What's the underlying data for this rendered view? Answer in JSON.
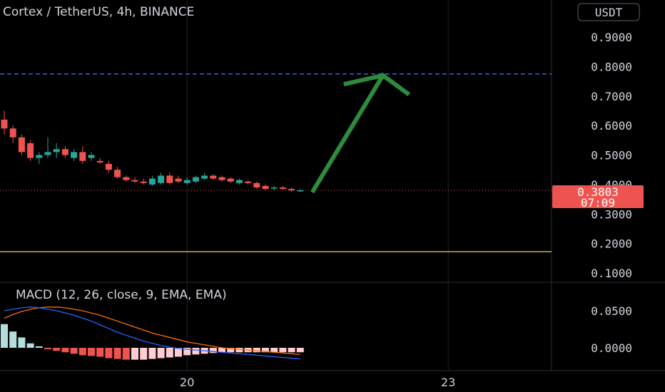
{
  "header": {
    "title": "Cortex / TetherUS, 4h, BINANCE",
    "currency": "USDT"
  },
  "price_badge": {
    "price": "0.3803",
    "countdown": "07:09"
  },
  "macd_label": "MACD (12, 26, close, 9, EMA, EMA)",
  "colors": {
    "background": "#000000",
    "up": "#26a69a",
    "down": "#ef5350",
    "arrow": "#2e8b3d",
    "dashed_line": "#3d5fd1",
    "horizontal_line": "#d4c043",
    "macd_line": "#2962ff",
    "signal_line": "#ff6d00",
    "hist_up_strong": "#b2dfdb",
    "hist_down_strong": "#ef5350",
    "hist_down_weak": "#ffcdd2"
  },
  "chart_data": [
    {
      "type": "candlestick",
      "title": "Cortex / TetherUS, 4h, BINANCE",
      "ylim": [
        0.05,
        1.0
      ],
      "y_ticks": [
        "0.9000",
        "0.8000",
        "0.7000",
        "0.6000",
        "0.5000",
        "0.4000",
        "0.3000",
        "0.2000",
        "0.1000"
      ],
      "y_tick_values": [
        0.9,
        0.8,
        0.7,
        0.6,
        0.5,
        0.4,
        0.3,
        0.2,
        0.1
      ],
      "x_ticks": [
        {
          "label": "20",
          "index": 21
        },
        {
          "label": "23",
          "index": 51
        }
      ],
      "x_count": 55,
      "candles": [
        {
          "o": 0.62,
          "h": 0.65,
          "l": 0.57,
          "c": 0.59
        },
        {
          "o": 0.59,
          "h": 0.6,
          "l": 0.54,
          "c": 0.56
        },
        {
          "o": 0.56,
          "h": 0.57,
          "l": 0.5,
          "c": 0.51
        },
        {
          "o": 0.54,
          "h": 0.55,
          "l": 0.48,
          "c": 0.49
        },
        {
          "o": 0.49,
          "h": 0.51,
          "l": 0.47,
          "c": 0.5
        },
        {
          "o": 0.5,
          "h": 0.56,
          "l": 0.49,
          "c": 0.51
        },
        {
          "o": 0.51,
          "h": 0.54,
          "l": 0.49,
          "c": 0.52
        },
        {
          "o": 0.52,
          "h": 0.53,
          "l": 0.49,
          "c": 0.5
        },
        {
          "o": 0.49,
          "h": 0.52,
          "l": 0.48,
          "c": 0.51
        },
        {
          "o": 0.51,
          "h": 0.53,
          "l": 0.47,
          "c": 0.48
        },
        {
          "o": 0.49,
          "h": 0.51,
          "l": 0.48,
          "c": 0.5
        },
        {
          "o": 0.48,
          "h": 0.49,
          "l": 0.47,
          "c": 0.475
        },
        {
          "o": 0.47,
          "h": 0.48,
          "l": 0.44,
          "c": 0.45
        },
        {
          "o": 0.45,
          "h": 0.46,
          "l": 0.42,
          "c": 0.425
        },
        {
          "o": 0.425,
          "h": 0.43,
          "l": 0.41,
          "c": 0.415
        },
        {
          "o": 0.415,
          "h": 0.425,
          "l": 0.405,
          "c": 0.41
        },
        {
          "o": 0.41,
          "h": 0.42,
          "l": 0.4,
          "c": 0.405
        },
        {
          "o": 0.4,
          "h": 0.43,
          "l": 0.395,
          "c": 0.42
        },
        {
          "o": 0.405,
          "h": 0.44,
          "l": 0.4,
          "c": 0.43
        },
        {
          "o": 0.43,
          "h": 0.44,
          "l": 0.4,
          "c": 0.405
        },
        {
          "o": 0.42,
          "h": 0.43,
          "l": 0.405,
          "c": 0.41
        },
        {
          "o": 0.405,
          "h": 0.425,
          "l": 0.4,
          "c": 0.415
        },
        {
          "o": 0.41,
          "h": 0.43,
          "l": 0.405,
          "c": 0.425
        },
        {
          "o": 0.42,
          "h": 0.44,
          "l": 0.415,
          "c": 0.43
        },
        {
          "o": 0.43,
          "h": 0.435,
          "l": 0.415,
          "c": 0.42
        },
        {
          "o": 0.425,
          "h": 0.43,
          "l": 0.41,
          "c": 0.415
        },
        {
          "o": 0.42,
          "h": 0.425,
          "l": 0.405,
          "c": 0.41
        },
        {
          "o": 0.405,
          "h": 0.42,
          "l": 0.4,
          "c": 0.415
        },
        {
          "o": 0.41,
          "h": 0.415,
          "l": 0.4,
          "c": 0.405
        },
        {
          "o": 0.405,
          "h": 0.41,
          "l": 0.385,
          "c": 0.39
        },
        {
          "o": 0.395,
          "h": 0.4,
          "l": 0.38,
          "c": 0.385
        },
        {
          "o": 0.39,
          "h": 0.395,
          "l": 0.38,
          "c": 0.39
        },
        {
          "o": 0.39,
          "h": 0.395,
          "l": 0.38,
          "c": 0.385
        },
        {
          "o": 0.385,
          "h": 0.39,
          "l": 0.375,
          "c": 0.38
        },
        {
          "o": 0.38,
          "h": 0.385,
          "l": 0.375,
          "c": 0.3803
        }
      ],
      "dashed_level": 0.775,
      "horizontal_level": 0.172,
      "current_price_level": 0.3803,
      "arrow": {
        "start": {
          "index": 35.5,
          "value": 0.38
        },
        "tip": {
          "index": 43.5,
          "value": 0.77
        },
        "left_barb": {
          "index": 39.0,
          "value": 0.74
        },
        "right_barb": {
          "index": 46.5,
          "value": 0.705
        }
      }
    },
    {
      "type": "macd",
      "title": "MACD (12, 26, close, 9, EMA, EMA)",
      "ylim": [
        -0.03,
        0.08
      ],
      "y_ticks": [
        "0.0500",
        "0.0000"
      ],
      "y_tick_values": [
        0.05,
        0.0
      ],
      "macd": [
        0.05,
        0.052,
        0.054,
        0.055,
        0.054,
        0.052,
        0.05,
        0.047,
        0.044,
        0.04,
        0.036,
        0.031,
        0.026,
        0.021,
        0.017,
        0.013,
        0.009,
        0.006,
        0.003,
        0.001,
        -0.001,
        -0.002,
        -0.003,
        -0.004,
        -0.005,
        -0.006,
        -0.007,
        -0.008,
        -0.009,
        -0.01,
        -0.011,
        -0.012,
        -0.013,
        -0.014,
        -0.015
      ],
      "signal": [
        0.04,
        0.045,
        0.049,
        0.052,
        0.054,
        0.055,
        0.055,
        0.054,
        0.052,
        0.05,
        0.047,
        0.044,
        0.04,
        0.036,
        0.032,
        0.028,
        0.024,
        0.02,
        0.017,
        0.014,
        0.011,
        0.008,
        0.006,
        0.004,
        0.002,
        0.0,
        -0.001,
        -0.002,
        -0.003,
        -0.004,
        -0.005,
        -0.006,
        -0.007,
        -0.008,
        -0.009
      ],
      "histogram": [
        0.032,
        0.022,
        0.014,
        0.006,
        0.002,
        -0.002,
        -0.004,
        -0.006,
        -0.008,
        -0.01,
        -0.011,
        -0.012,
        -0.014,
        -0.015,
        -0.016,
        -0.016,
        -0.016,
        -0.015,
        -0.014,
        -0.013,
        -0.012,
        -0.01,
        -0.009,
        -0.008,
        -0.007,
        -0.006,
        -0.006,
        -0.006,
        -0.006,
        -0.006,
        -0.006,
        -0.006,
        -0.006,
        -0.006,
        -0.006
      ]
    }
  ]
}
